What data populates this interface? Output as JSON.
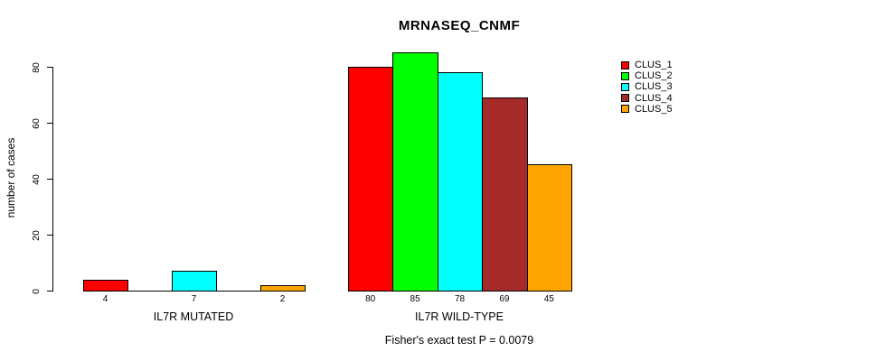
{
  "chart_data": {
    "type": "bar",
    "title": "MRNASEQ_CNMF",
    "ylabel": "number of cases",
    "xlabel": "Fisher's exact test P = 0.0079",
    "ylim": [
      0,
      85
    ],
    "yticks": [
      0,
      20,
      40,
      60,
      80
    ],
    "grid": false,
    "legend_position": "top-right",
    "series": [
      {
        "name": "CLUS_1",
        "color": "#FF0000"
      },
      {
        "name": "CLUS_2",
        "color": "#00FF00"
      },
      {
        "name": "CLUS_3",
        "color": "#00FFFF"
      },
      {
        "name": "CLUS_4",
        "color": "#A52A2A"
      },
      {
        "name": "CLUS_5",
        "color": "#FFA500"
      }
    ],
    "groups": [
      {
        "label": "IL7R MUTATED",
        "values": [
          4,
          null,
          7,
          null,
          2
        ]
      },
      {
        "label": "IL7R WILD-TYPE",
        "values": [
          80,
          85,
          78,
          69,
          45
        ]
      }
    ]
  }
}
